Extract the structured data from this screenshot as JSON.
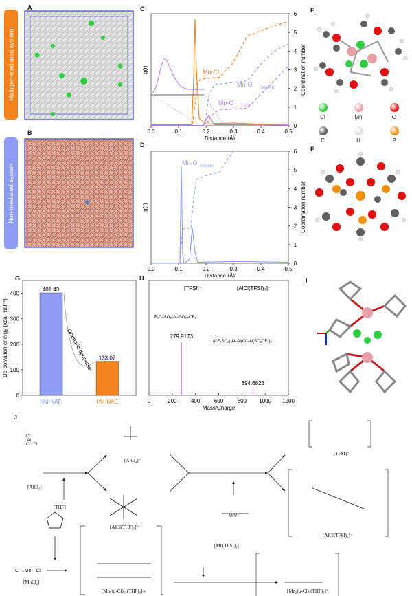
{
  "panels": {
    "A": {
      "label": "A",
      "tag": "Halogen-mediated system",
      "tag_color": "#f5821f"
    },
    "B": {
      "label": "B",
      "tag": "Non-mediated system",
      "tag_color": "#8e9cf5"
    },
    "C": {
      "label": "C"
    },
    "D": {
      "label": "D"
    },
    "E": {
      "label": "E",
      "legend": [
        {
          "symbol": "Cl",
          "color": "#2ecc40"
        },
        {
          "symbol": "Mn",
          "color": "#e8a0a8"
        },
        {
          "symbol": "O",
          "color": "#e01010"
        },
        {
          "symbol": "C",
          "color": "#606060"
        },
        {
          "symbol": "H",
          "color": "#e0e0e0"
        },
        {
          "symbol": "P",
          "color": "#f0900a"
        }
      ]
    },
    "F": {
      "label": "F"
    },
    "G": {
      "label": "G"
    },
    "H": {
      "label": "H",
      "annotations": [
        "[TFSI]⁻",
        "[AlCl(TFSI)₃]⁻"
      ]
    },
    "I": {
      "label": "I"
    },
    "J": {
      "label": "J"
    }
  },
  "chart_data": [
    {
      "panel": "C",
      "type": "line",
      "xlabel": "Distance (Å)",
      "ylabel": "g(r)",
      "y2label": "Coordination number",
      "xlim": [
        0,
        0.5
      ],
      "y2lim": [
        0,
        6
      ],
      "xticks": [
        "0.0",
        "0.1",
        "0.2",
        "0.3",
        "0.4",
        "0.5"
      ],
      "y2ticks": [
        "0",
        "1",
        "2",
        "3",
        "4",
        "5",
        "6"
      ],
      "series": [
        {
          "name": "Mn-Cl",
          "color": "#f5821f",
          "kind": "g(r)",
          "x": [
            0,
            0.148,
            0.155,
            0.16,
            0.165,
            0.175,
            0.2,
            0.3,
            0.4,
            0.5
          ],
          "y": [
            0.05,
            0.05,
            2.5,
            5.7,
            3.0,
            0.4,
            0.1,
            0.15,
            0.08,
            0.05
          ]
        },
        {
          "name": "Mn-Cl",
          "color": "#f5821f",
          "kind": "CN",
          "x": [
            0,
            0.15,
            0.16,
            0.17,
            0.18,
            0.25,
            0.3,
            0.35,
            0.42,
            0.5
          ],
          "y": [
            0,
            0,
            1.2,
            2.3,
            2.5,
            2.6,
            3.4,
            4.8,
            5.2,
            5.6
          ]
        },
        {
          "name": "Mn-O_Solvent",
          "color": "#8e9cf5",
          "kind": "CN",
          "x": [
            0,
            0.19,
            0.2,
            0.21,
            0.23,
            0.35,
            0.4,
            0.45,
            0.5
          ],
          "y": [
            0,
            0,
            0.5,
            1.6,
            2.2,
            2.4,
            3.3,
            4.0,
            4.4
          ]
        },
        {
          "name": "Mn-O_TFSI",
          "color": "#b57cf0",
          "kind": "g(r)",
          "x": [
            0,
            0.19,
            0.2,
            0.21,
            0.22,
            0.23,
            0.3,
            0.4,
            0.5
          ],
          "y": [
            0.02,
            0.02,
            0.3,
            0.55,
            0.35,
            0.05,
            0.05,
            0.05,
            0.02
          ]
        },
        {
          "name": "Mn-O_TFSI",
          "color": "#b57cf0",
          "kind": "CN",
          "x": [
            0,
            0.2,
            0.21,
            0.23,
            0.25,
            0.35,
            0.42,
            0.5
          ],
          "y": [
            0,
            0,
            0.3,
            0.7,
            0.85,
            0.95,
            2.0,
            3.2
          ]
        }
      ],
      "legend_labels": [
        "Mn-Cl",
        "Mn-O",
        "Solvent",
        "Mn-O",
        "TFSI"
      ]
    },
    {
      "panel": "D",
      "type": "line",
      "xlabel": "Distance (Å)",
      "ylabel": "g(r)",
      "y2label": "Coordination number",
      "xlim": [
        0,
        0.5
      ],
      "y2lim": [
        0,
        6
      ],
      "xticks": [
        "0.0",
        "0.1",
        "0.2",
        "0.3",
        "0.4",
        "0.5"
      ],
      "y2ticks": [
        "0",
        "1",
        "2",
        "3",
        "4",
        "5",
        "6"
      ],
      "series": [
        {
          "name": "Mn-O_Solvent",
          "color": "#8e9cf5",
          "kind": "g(r)",
          "x": [
            0,
            0.105,
            0.11,
            0.115,
            0.12,
            0.14,
            0.15,
            0.16,
            0.17,
            0.3,
            0.5
          ],
          "y": [
            0,
            0,
            5.2,
            0.5,
            0,
            0.2,
            1.9,
            0.6,
            0.05,
            0.1,
            0.05
          ]
        },
        {
          "name": "Mn-O_Solvent",
          "color": "#8e9cf5",
          "kind": "CN",
          "x": [
            0,
            0.105,
            0.115,
            0.145,
            0.155,
            0.165,
            0.2,
            0.25,
            0.28,
            0.3
          ],
          "y": [
            0,
            0,
            1.85,
            1.9,
            3.5,
            4.5,
            4.7,
            4.9,
            5.6,
            6
          ]
        }
      ],
      "legend_labels": [
        "Mn-O",
        "Solvent"
      ]
    },
    {
      "panel": "G",
      "type": "bar",
      "ylabel": "De-solvation energy (kcal mol⁻¹)",
      "ylim": [
        0,
        450
      ],
      "yticks": [
        "0",
        "100",
        "200",
        "300",
        "400"
      ],
      "categories": [
        "NM-NAE",
        "HM-NAE"
      ],
      "values": [
        401.43,
        133.07
      ],
      "value_labels": [
        "401.43",
        "133.07"
      ],
      "colors": [
        "#8e9cf5",
        "#f5821f"
      ],
      "annotation": "Dramatic decrease"
    },
    {
      "panel": "H",
      "type": "bar",
      "xlabel": "Mass/Charge",
      "xlim": [
        0,
        1200
      ],
      "xticks": [
        "0",
        "200",
        "400",
        "600",
        "800",
        "1000",
        "1200"
      ],
      "peaks": [
        279.9173,
        894.6823
      ],
      "peak_labels": [
        "279.9173",
        "894.6823"
      ],
      "color": "#c080f0"
    }
  ],
  "scheme": {
    "AlCl3": "[AlCl₃]",
    "AlCl4": "[AlCl₄]⁻",
    "AlClTHF5": "[AlCl(THF)₅]²⁺",
    "THF": "[THF]",
    "MnCl2": "[MnCl₂]",
    "Mn5": "[Mn₅(μ-Cl)₁₀(THF)₈]∞",
    "MnTFSI2": "[Mn(TFSI)₂]",
    "TFSI": "[TFSI]⁻",
    "AlClTFSI3": "[AlCl(TFSI)₃]⁻",
    "Mn2": "[Mn₂(μ-Cl)₃(THF)₆]⁺",
    "mn_ion": "Mn²⁺"
  }
}
